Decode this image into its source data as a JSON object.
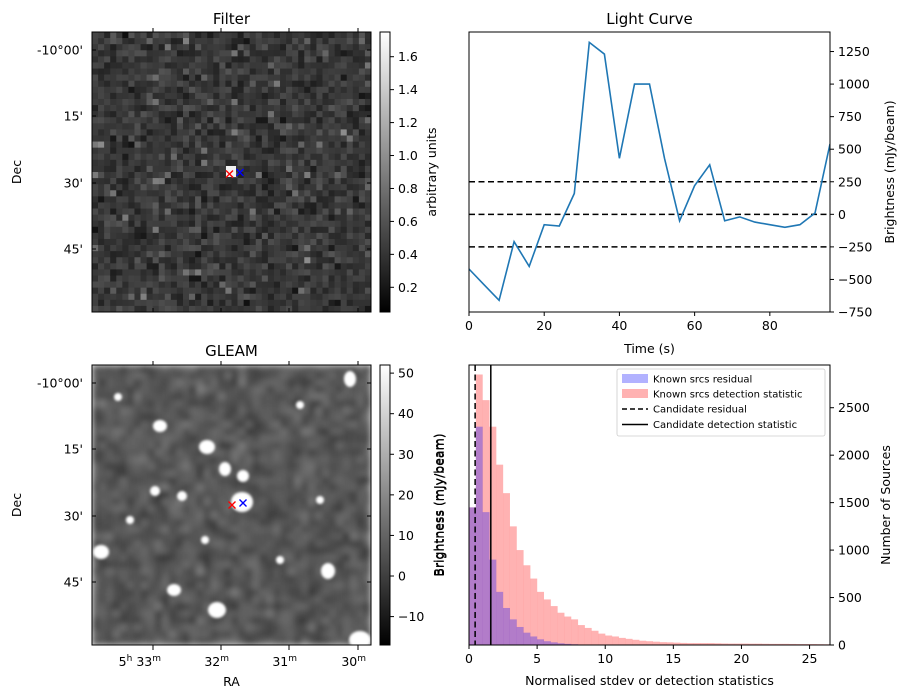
{
  "panels": {
    "filter": {
      "title": "Filter",
      "ylabel": "Dec",
      "dec_ticks": [
        "-10°00'",
        "15'",
        "30'",
        "45'"
      ],
      "colorbar": {
        "label": "arbitrary units",
        "ticks": [
          "0.2",
          "0.4",
          "0.6",
          "0.8",
          "1.0",
          "1.2",
          "1.4",
          "1.6"
        ],
        "range": [
          0.05,
          1.75
        ]
      },
      "markers": [
        {
          "symbol": "x",
          "color": "#ff0000"
        },
        {
          "symbol": "x",
          "color": "#0000ff"
        }
      ]
    },
    "gleam": {
      "title": "GLEAM",
      "ylabel": "Dec",
      "xlabel": "RA",
      "dec_ticks": [
        "-10°00'",
        "15'",
        "30'",
        "45'"
      ],
      "ra_ticks": [
        {
          "h": "5",
          "hs": "h",
          "m": "33",
          "ms": "m"
        },
        {
          "h": "",
          "hs": "",
          "m": "32",
          "ms": "m"
        },
        {
          "h": "",
          "hs": "",
          "m": "31",
          "ms": "m"
        },
        {
          "h": "",
          "hs": "",
          "m": "30",
          "ms": "m"
        }
      ],
      "colorbar": {
        "label": "Brightness (mJy/beam)",
        "ticks": [
          "−10",
          "0",
          "10",
          "20",
          "30",
          "40",
          "50"
        ],
        "range": [
          -17,
          52
        ]
      },
      "markers": [
        {
          "symbol": "x",
          "color": "#ff0000"
        },
        {
          "symbol": "x",
          "color": "#0000ff"
        }
      ]
    }
  },
  "chart_data": [
    {
      "type": "line",
      "title": "Light Curve",
      "xlabel": "Time (s)",
      "ylabel": "Brightness (mJy/beam)",
      "xlim": [
        0,
        96
      ],
      "ylim": [
        -750,
        1400
      ],
      "xticks": [
        0,
        20,
        40,
        60,
        80
      ],
      "yticks": [
        -750,
        -500,
        -250,
        0,
        250,
        500,
        750,
        1000,
        1250
      ],
      "ytick_labels": [
        "−750",
        "−500",
        "−250",
        "0",
        "250",
        "500",
        "750",
        "1000",
        "1250"
      ],
      "series": [
        {
          "color": "#1f77b4",
          "x": [
            0,
            4,
            8,
            12,
            16,
            20,
            24,
            28,
            32,
            36,
            40,
            44,
            48,
            52,
            56,
            60,
            64,
            68,
            72,
            76,
            80,
            84,
            88,
            92,
            96
          ],
          "y": [
            -420,
            -540,
            -660,
            -210,
            -400,
            -80,
            -90,
            160,
            1320,
            1230,
            430,
            1000,
            1000,
            430,
            -50,
            220,
            380,
            -50,
            -20,
            -60,
            -80,
            -100,
            -80,
            10,
            540
          ]
        }
      ],
      "hlines": [
        {
          "y": 250,
          "style": "dashed",
          "color": "#000000"
        },
        {
          "y": 0,
          "style": "dashed",
          "color": "#000000"
        },
        {
          "y": -250,
          "style": "dashed",
          "color": "#000000"
        }
      ]
    },
    {
      "type": "bar",
      "subtype": "histogram",
      "xlabel": "Normalised stdev or detection statistics",
      "ylabel_left": "Brightness (mJy/beam)",
      "ylabel_right": "Number of Sources",
      "xlim": [
        0,
        26.5
      ],
      "ylim": [
        0,
        2950
      ],
      "xticks": [
        0,
        5,
        10,
        15,
        20,
        25
      ],
      "yticks": [
        0,
        500,
        1000,
        1500,
        2000,
        2500
      ],
      "bin_width": 0.5,
      "series": [
        {
          "name": "Known srcs residual",
          "color": "#0000ff",
          "alpha": 0.3,
          "bin_start": 0,
          "values": [
            1450,
            2300,
            1400,
            900,
            560,
            390,
            270,
            190,
            130,
            90,
            60,
            40,
            28,
            18,
            12,
            8,
            5,
            3,
            2,
            1
          ]
        },
        {
          "name": "Known srcs detection statistic",
          "color": "#ff0000",
          "alpha": 0.3,
          "bin_start": 0,
          "values": [
            1450,
            2850,
            2580,
            2300,
            1900,
            1600,
            1250,
            1000,
            840,
            700,
            560,
            480,
            410,
            340,
            300,
            270,
            210,
            180,
            150,
            120,
            100,
            90,
            75,
            65,
            55,
            45,
            40,
            35,
            30,
            28,
            25,
            22,
            20,
            20,
            20,
            20,
            18,
            16,
            15,
            15,
            15,
            14,
            14,
            13,
            12,
            12,
            12,
            11,
            10,
            10,
            10,
            9,
            8
          ]
        }
      ],
      "vlines": [
        {
          "name": "Candidate residual",
          "x": 0.45,
          "style": "dashed",
          "color": "#000000"
        },
        {
          "name": "Candidate detection statistic",
          "x": 1.6,
          "style": "solid",
          "color": "#000000"
        }
      ],
      "legend": "top-right"
    }
  ]
}
